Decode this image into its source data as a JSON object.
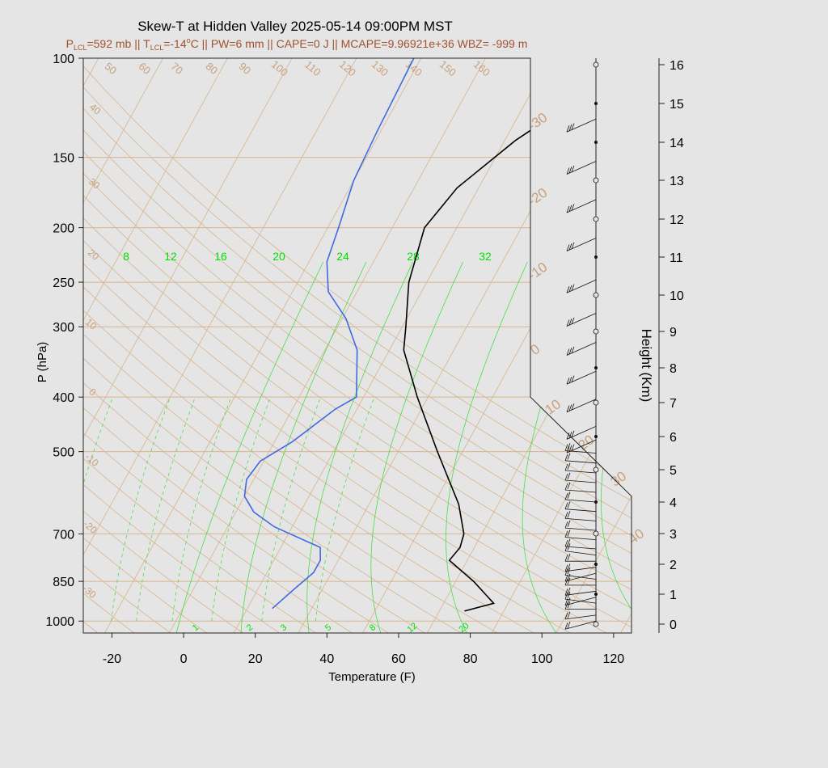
{
  "chart_data": {
    "type": "skew-t",
    "title": "Skew-T at Hidden Valley 2025-05-14 09:00PM MST",
    "subtitle": {
      "plcl_sym": "P",
      "plcl_sub": "LCL",
      "plcl_val": "=592 mb || ",
      "tlcl_sym": "T",
      "tlcl_sub": "LCL",
      "tlcl_val": "=-14",
      "deg": "o",
      "rest": "C || PW=6 mm || CAPE=0 J || MCAPE=9.96921e+36 WBZ= -999 m"
    },
    "xlabel": "Temperature (F)",
    "ylabel": "P (hPa)",
    "y2label": "Height (Km)",
    "x_ticks": [
      -20,
      0,
      20,
      40,
      60,
      80,
      100,
      120
    ],
    "p_ticks": [
      100,
      150,
      200,
      250,
      300,
      400,
      500,
      700,
      850,
      1000
    ],
    "height_ticks": [
      0,
      1,
      2,
      3,
      4,
      5,
      6,
      7,
      8,
      9,
      10,
      11,
      12,
      13,
      14,
      15,
      16
    ],
    "isotherm_labels": [
      "-30",
      "-20",
      "-10",
      "0",
      "10",
      "20",
      "30",
      "40"
    ],
    "dry_adiabat_labels": [
      "50",
      "60",
      "70",
      "80",
      "90",
      "100",
      "110",
      "120",
      "130",
      "140",
      "150",
      "160"
    ],
    "left_dry_labels": [
      "40",
      "30",
      "20",
      "10",
      "0",
      "-10",
      "-20",
      "-30"
    ],
    "moist_adiabat_labels": [
      "8",
      "12",
      "16",
      "20",
      "24",
      "28",
      "32"
    ],
    "mixing_ratio_labels": [
      "1",
      "2",
      "3",
      "5",
      "8",
      "12",
      "20"
    ],
    "temperature_profile": {
      "p": [
        960,
        930,
        850,
        780,
        740,
        700,
        620,
        500,
        400,
        330,
        300,
        250,
        200,
        170,
        140,
        120,
        100
      ],
      "temp_f": [
        75,
        82,
        73,
        63,
        64,
        63,
        57,
        43,
        29,
        18,
        15,
        9,
        5,
        8,
        17,
        27,
        41
      ]
    },
    "dewpoint_profile": {
      "p": [
        950,
        880,
        820,
        780,
        740,
        680,
        640,
        600,
        560,
        520,
        480,
        420,
        400,
        330,
        290,
        260,
        230,
        200,
        165,
        135,
        100
      ],
      "dewpoint_f": [
        21,
        24,
        27,
        27,
        25,
        9,
        1,
        -4,
        -6,
        -5,
        1,
        8,
        12,
        5,
        -3,
        -12,
        -17,
        -19,
        -22,
        -23,
        -24
      ]
    },
    "axis_ranges": {
      "x_f": [
        -28,
        125
      ],
      "p_hpa": [
        1050,
        100
      ],
      "height_km": [
        0,
        16
      ]
    },
    "line_colors": {
      "temperature": "#000000",
      "dewpoint": "#4169e1",
      "background_grid": "#d8b48c",
      "moist": "#33dd33"
    },
    "wind_barbs": {
      "heights_km": [
        0.1,
        0.3,
        0.5,
        0.7,
        0.9,
        1.1,
        1.3,
        1.5,
        1.7,
        1.9,
        2.1,
        2.3,
        2.5,
        2.8,
        3.1,
        3.4,
        3.7,
        4.0,
        4.3,
        4.6,
        4.9,
        5.2,
        5.5,
        5.9,
        6.3,
        7.1,
        7.9,
        8.7,
        9.5,
        10.4,
        11.5,
        12.5,
        13.5,
        14.6
      ]
    }
  }
}
